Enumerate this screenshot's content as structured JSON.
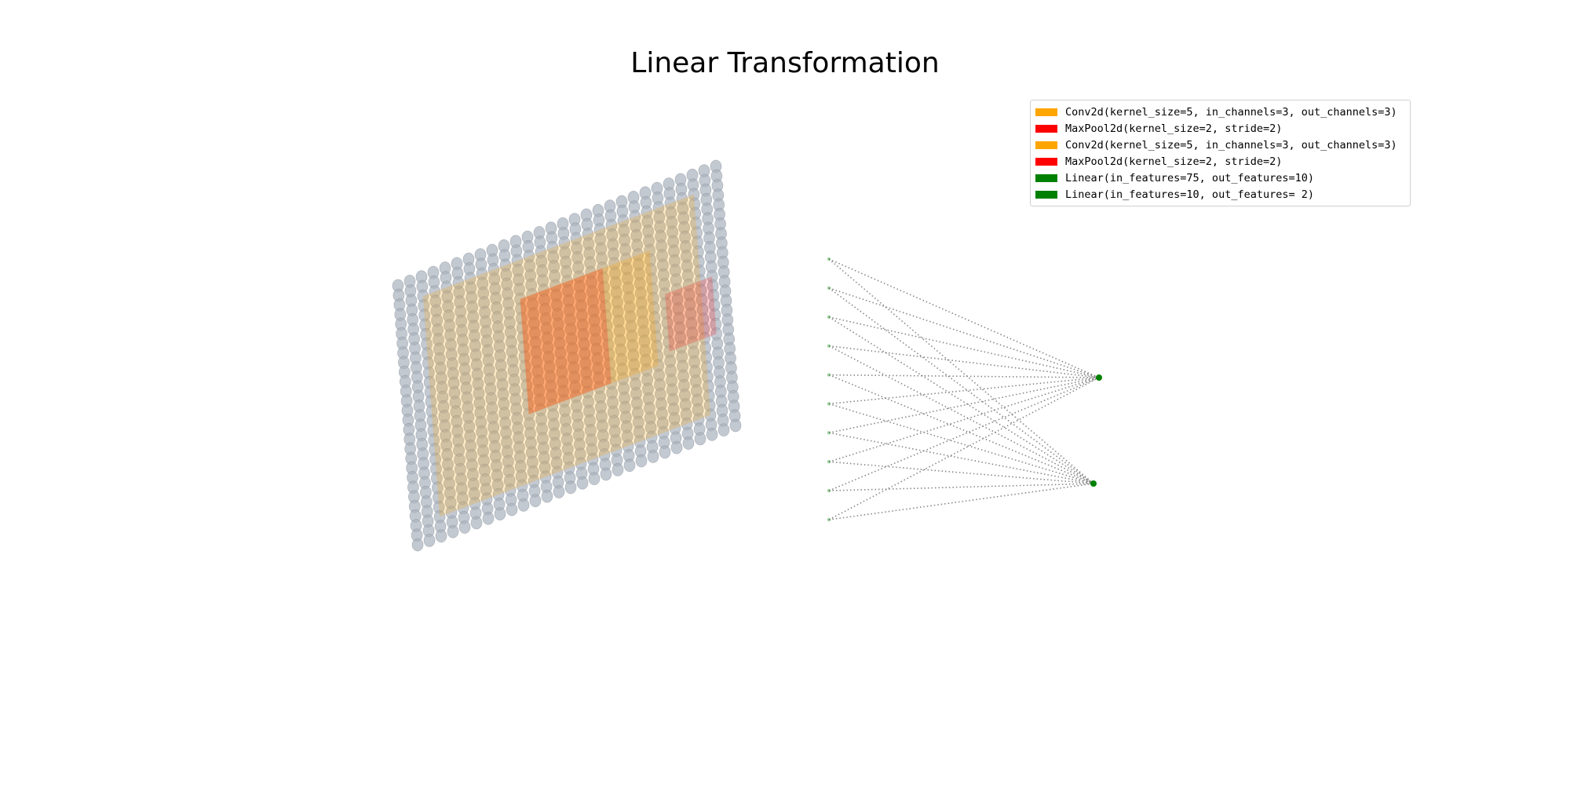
{
  "figure": {
    "title": "Linear Transformation"
  },
  "legend": {
    "items": [
      {
        "label": "Conv2d(kernel_size=5, in_channels=3, out_channels=3)",
        "color": "#ffa500",
        "icon": "legend-swatch"
      },
      {
        "label": "MaxPool2d(kernel_size=2, stride=2)",
        "color": "#ff0000",
        "icon": "legend-swatch"
      },
      {
        "label": "Conv2d(kernel_size=5, in_channels=3, out_channels=3)",
        "color": "#ffa500",
        "icon": "legend-swatch"
      },
      {
        "label": "MaxPool2d(kernel_size=2, stride=2)",
        "color": "#ff0000",
        "icon": "legend-swatch"
      },
      {
        "label": "Linear(in_features=75, out_features=10)",
        "color": "#008000",
        "icon": "legend-swatch"
      },
      {
        "label": "Linear(in_features=10, out_features= 2)",
        "color": "#008000",
        "icon": "legend-swatch"
      }
    ]
  },
  "network": {
    "input_grid": {
      "rows": 28,
      "cols": 28,
      "node_color": "#aab2bd"
    },
    "conv_region": {
      "color": "#ffa500"
    },
    "pool_region": {
      "color": "#ff0000"
    },
    "hidden_layer": {
      "units": 10,
      "node_color": "#008000"
    },
    "output_layer": {
      "units": 2,
      "node_color": "#008000"
    },
    "edge_style": {
      "color": "#888888",
      "pattern": "dotted"
    }
  }
}
